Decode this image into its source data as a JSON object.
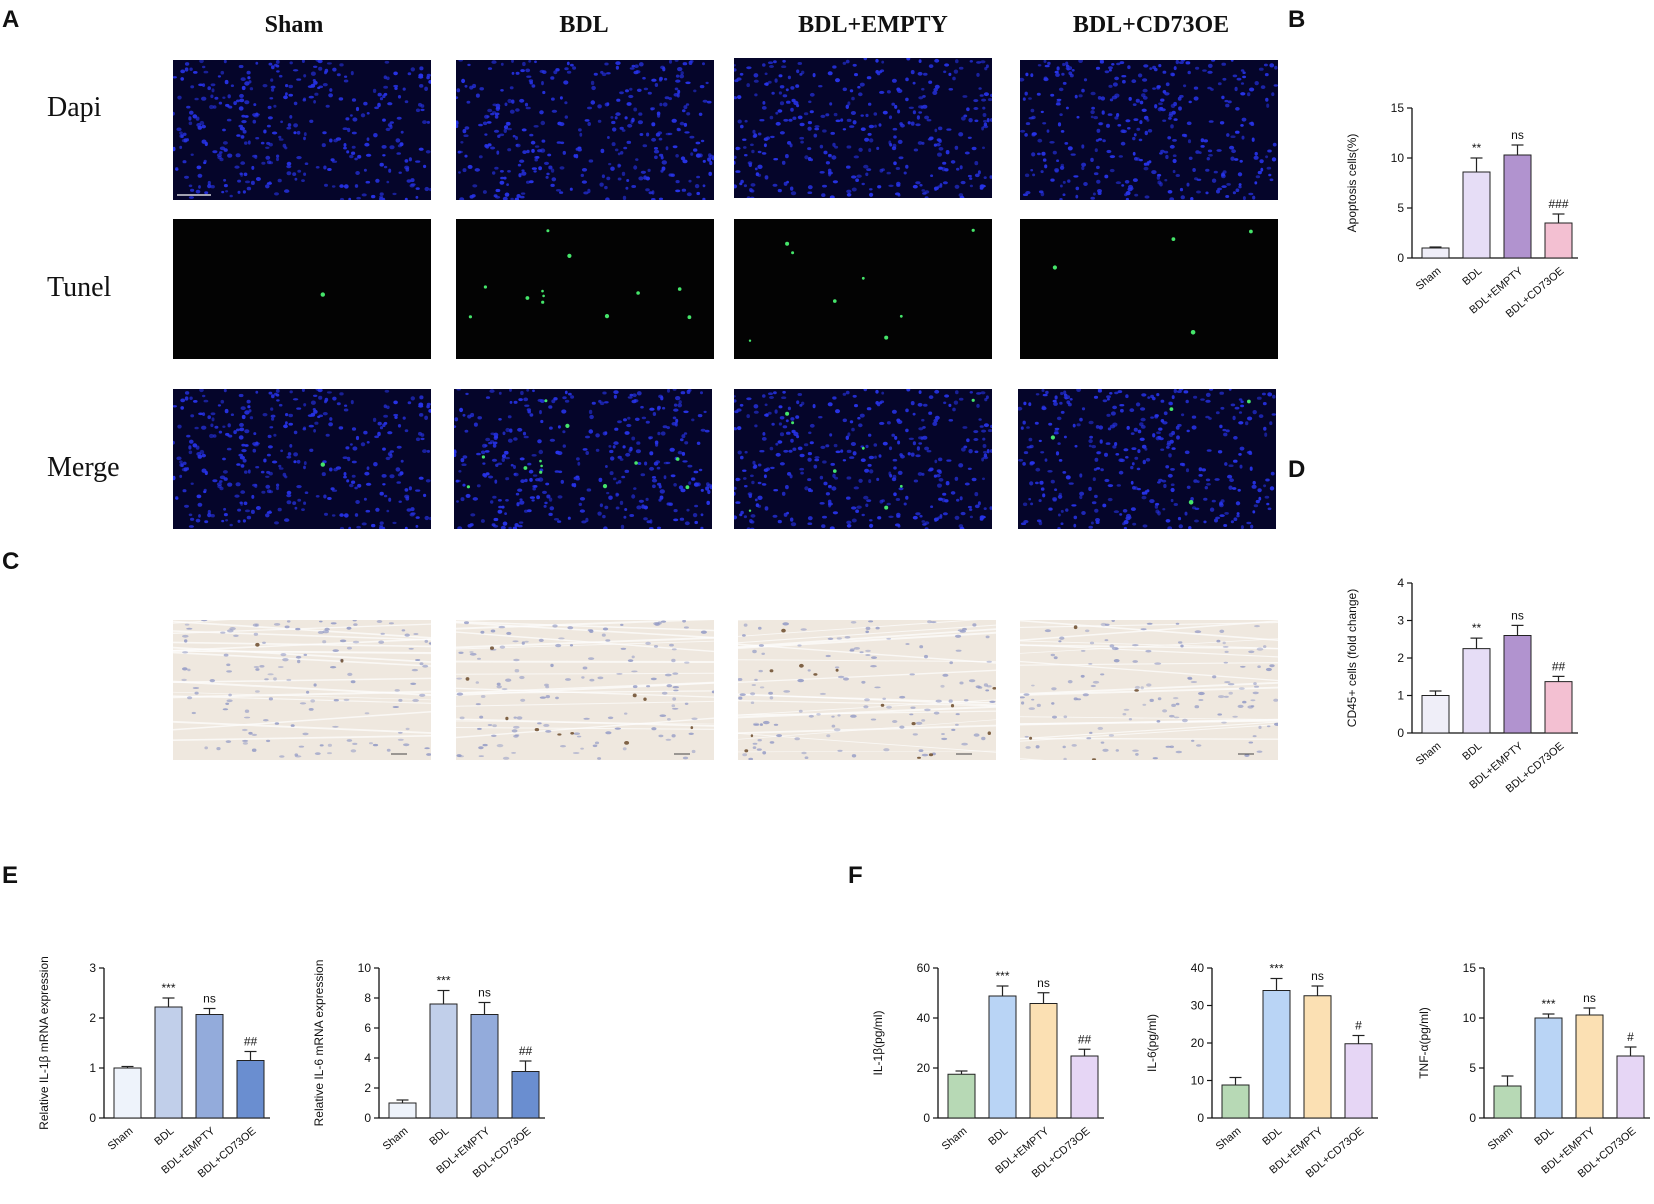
{
  "panels": {
    "A": "A",
    "B": "B",
    "C": "C",
    "D": "D",
    "E": "E",
    "F": "F"
  },
  "panel_a": {
    "columns": [
      "Sham",
      "BDL",
      "BDL+EMPTY",
      "BDL+CD73OE"
    ],
    "rows": [
      "Dapi",
      "Tunel",
      "Merge"
    ],
    "tunel_positive_spots": [
      1,
      12,
      8,
      4
    ]
  },
  "colors": {
    "sham": "#efeef8",
    "bdl": "#e6ddf6",
    "empty": "#b193cf",
    "cd73oe": "#f3c0d2",
    "e_sham": "#eef3fb",
    "e_bdl": "#c1cfea",
    "e_empty": "#93abdb",
    "e_cd73oe": "#6a8ed0",
    "f_sham": "#b7d9b5",
    "f_bdl": "#b9d4f5",
    "f_empty": "#fbe0b3",
    "f_cd73oe": "#e6d6f5",
    "dapi_nucleus": "#2733e8",
    "tunel_spot": "#45e56a"
  },
  "chart_data": [
    {
      "id": "B",
      "type": "bar",
      "categories": [
        "Sham",
        "BDL",
        "BDL+EMPTY",
        "BDL+CD73OE"
      ],
      "values": [
        1.0,
        8.6,
        10.3,
        3.5
      ],
      "errors": [
        0.1,
        1.4,
        1.0,
        0.9
      ],
      "sig": [
        "",
        "**",
        "ns",
        "###"
      ],
      "ylabel": "Apoptosis cells(%)",
      "ylim": [
        0,
        15
      ],
      "yticks": [
        0,
        5,
        10,
        15
      ],
      "colorKeys": [
        "sham",
        "bdl",
        "empty",
        "cd73oe"
      ]
    },
    {
      "id": "D",
      "type": "bar",
      "categories": [
        "Sham",
        "BDL",
        "BDL+EMPTY",
        "BDL+CD73OE"
      ],
      "values": [
        1.0,
        2.25,
        2.6,
        1.37
      ],
      "errors": [
        0.12,
        0.28,
        0.27,
        0.14
      ],
      "sig": [
        "",
        "**",
        "ns",
        "##"
      ],
      "ylabel": "CD45+ cells (fold change)",
      "ylim": [
        0,
        4
      ],
      "yticks": [
        0,
        1,
        2,
        3,
        4
      ],
      "colorKeys": [
        "sham",
        "bdl",
        "empty",
        "cd73oe"
      ]
    },
    {
      "id": "E1",
      "type": "bar",
      "categories": [
        "Sham",
        "BDL",
        "BDL+EMPTY",
        "BDL+CD73OE"
      ],
      "values": [
        1.0,
        2.22,
        2.07,
        1.15
      ],
      "errors": [
        0.03,
        0.18,
        0.12,
        0.18
      ],
      "sig": [
        "",
        "***",
        "ns",
        "##"
      ],
      "ylabel": "Relative IL-1β mRNA expression",
      "ylim": [
        0,
        3
      ],
      "yticks": [
        0,
        1,
        2,
        3
      ],
      "colorKeys": [
        "e_sham",
        "e_bdl",
        "e_empty",
        "e_cd73oe"
      ]
    },
    {
      "id": "E2",
      "type": "bar",
      "categories": [
        "Sham",
        "BDL",
        "BDL+EMPTY",
        "BDL+CD73OE"
      ],
      "values": [
        1.0,
        7.6,
        6.9,
        3.1
      ],
      "errors": [
        0.2,
        0.9,
        0.8,
        0.7
      ],
      "sig": [
        "",
        "***",
        "ns",
        "##"
      ],
      "ylabel": "Relative IL-6 mRNA expression",
      "ylim": [
        0,
        10
      ],
      "yticks": [
        0,
        2,
        4,
        6,
        8,
        10
      ],
      "colorKeys": [
        "e_sham",
        "e_bdl",
        "e_empty",
        "e_cd73oe"
      ]
    },
    {
      "id": "F1",
      "type": "bar",
      "categories": [
        "Sham",
        "BDL",
        "BDL+EMPTY",
        "BDL+CD73OE"
      ],
      "values": [
        17.5,
        48.8,
        45.8,
        24.8
      ],
      "errors": [
        1.3,
        4.0,
        4.3,
        2.7
      ],
      "sig": [
        "",
        "***",
        "ns",
        "##"
      ],
      "ylabel": "IL-1β(pg/ml)",
      "ylim": [
        0,
        60
      ],
      "yticks": [
        0,
        20,
        40,
        60
      ],
      "colorKeys": [
        "f_sham",
        "f_bdl",
        "f_empty",
        "f_cd73oe"
      ]
    },
    {
      "id": "F2",
      "type": "bar",
      "categories": [
        "Sham",
        "BDL",
        "BDL+EMPTY",
        "BDL+CD73OE"
      ],
      "values": [
        8.8,
        34.0,
        32.6,
        19.8
      ],
      "errors": [
        2.0,
        3.2,
        2.6,
        2.2
      ],
      "sig": [
        "",
        "***",
        "ns",
        "#"
      ],
      "ylabel": "IL-6(pg/ml)",
      "ylim": [
        0,
        40
      ],
      "yticks": [
        0,
        10,
        20,
        30,
        40
      ],
      "colorKeys": [
        "f_sham",
        "f_bdl",
        "f_empty",
        "f_cd73oe"
      ]
    },
    {
      "id": "F3",
      "type": "bar",
      "categories": [
        "Sham",
        "BDL",
        "BDL+EMPTY",
        "BDL+CD73OE"
      ],
      "values": [
        3.2,
        10.0,
        10.3,
        6.2
      ],
      "errors": [
        1.0,
        0.4,
        0.7,
        0.9
      ],
      "sig": [
        "",
        "***",
        "ns",
        "#"
      ],
      "ylabel": "TNF-α(pg/ml)",
      "ylim": [
        0,
        15
      ],
      "yticks": [
        0,
        5,
        10,
        15
      ],
      "colorKeys": [
        "f_sham",
        "f_bdl",
        "f_empty",
        "f_cd73oe"
      ]
    }
  ]
}
